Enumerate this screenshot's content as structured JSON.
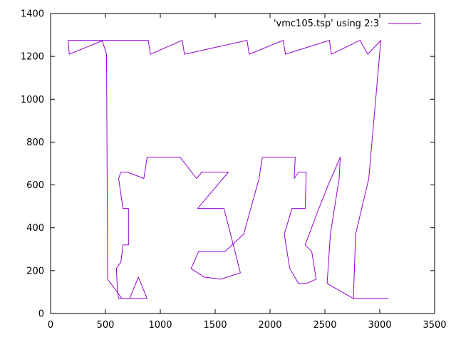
{
  "chart_data": {
    "type": "line",
    "title": "",
    "xlabel": "",
    "ylabel": "",
    "xlim": [
      0,
      3500
    ],
    "ylim": [
      0,
      1400
    ],
    "x_ticks": [
      0,
      500,
      1000,
      1500,
      2000,
      2500,
      3000,
      3500
    ],
    "y_ticks": [
      0,
      200,
      400,
      600,
      800,
      1000,
      1200,
      1400
    ],
    "grid": false,
    "legend_position": "top-right",
    "series": [
      {
        "name": "'vmc105.tsp' using 2:3",
        "color": "#9400d3",
        "points": [
          [
            3080,
            70
          ],
          [
            2760,
            70
          ],
          [
            2780,
            370
          ],
          [
            2900,
            630
          ],
          [
            3010,
            1275
          ],
          [
            2890,
            1210
          ],
          [
            2820,
            1275
          ],
          [
            2560,
            1210
          ],
          [
            2540,
            1275
          ],
          [
            2140,
            1210
          ],
          [
            2120,
            1275
          ],
          [
            1810,
            1210
          ],
          [
            1790,
            1275
          ],
          [
            1220,
            1210
          ],
          [
            1200,
            1275
          ],
          [
            910,
            1210
          ],
          [
            890,
            1275
          ],
          [
            480,
            1275
          ],
          [
            170,
            1210
          ],
          [
            160,
            1275
          ],
          [
            470,
            1275
          ],
          [
            510,
            1210
          ],
          [
            520,
            160
          ],
          [
            650,
            70
          ],
          [
            780,
            70
          ],
          [
            880,
            70
          ],
          [
            800,
            170
          ],
          [
            720,
            70
          ],
          [
            620,
            70
          ],
          [
            610,
            100
          ],
          [
            600,
            210
          ],
          [
            640,
            240
          ],
          [
            660,
            320
          ],
          [
            710,
            320
          ],
          [
            710,
            490
          ],
          [
            660,
            490
          ],
          [
            620,
            630
          ],
          [
            640,
            660
          ],
          [
            700,
            660
          ],
          [
            850,
            630
          ],
          [
            880,
            730
          ],
          [
            1180,
            730
          ],
          [
            1330,
            630
          ],
          [
            1380,
            660
          ],
          [
            1620,
            660
          ],
          [
            1340,
            490
          ],
          [
            1580,
            490
          ],
          [
            1640,
            370
          ],
          [
            1730,
            190
          ],
          [
            1550,
            160
          ],
          [
            1400,
            170
          ],
          [
            1280,
            210
          ],
          [
            1350,
            290
          ],
          [
            1590,
            290
          ],
          [
            1760,
            370
          ],
          [
            1900,
            630
          ],
          [
            1930,
            730
          ],
          [
            2230,
            730
          ],
          [
            2220,
            630
          ],
          [
            2260,
            660
          ],
          [
            2330,
            660
          ],
          [
            2320,
            490
          ],
          [
            2200,
            490
          ],
          [
            2130,
            370
          ],
          [
            2180,
            210
          ],
          [
            2260,
            140
          ],
          [
            2330,
            140
          ],
          [
            2420,
            160
          ],
          [
            2380,
            290
          ],
          [
            2320,
            320
          ],
          [
            2430,
            470
          ],
          [
            2530,
            600
          ],
          [
            2640,
            730
          ],
          [
            2630,
            630
          ],
          [
            2550,
            370
          ],
          [
            2520,
            140
          ],
          [
            2760,
            70
          ],
          [
            3000,
            70
          ]
        ]
      }
    ]
  }
}
